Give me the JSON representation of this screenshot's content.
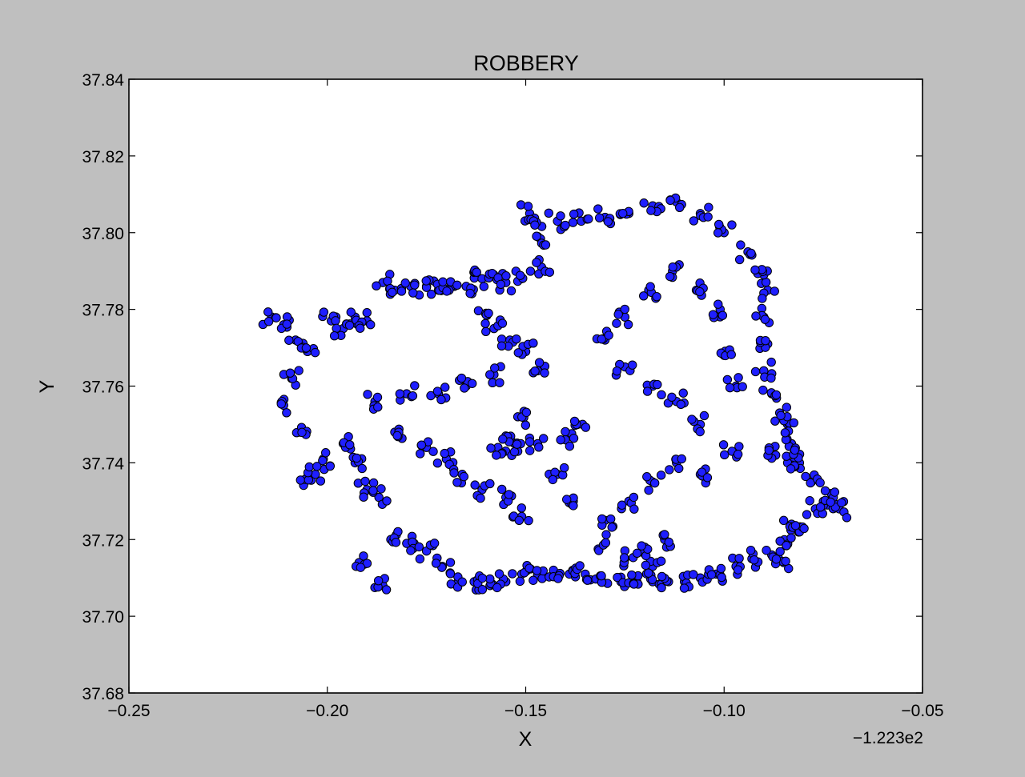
{
  "chart_data": {
    "type": "scatter",
    "title": "ROBBERY",
    "xlabel": "X",
    "ylabel": "Y",
    "x_offset_label": "−1.223e2",
    "xlim": [
      -0.25,
      -0.05
    ],
    "ylim": [
      37.68,
      37.84
    ],
    "xticks": [
      -0.25,
      -0.2,
      -0.15,
      -0.1,
      -0.05
    ],
    "xtick_labels": [
      "−0.25",
      "−0.20",
      "−0.15",
      "−0.10",
      "−0.05"
    ],
    "yticks": [
      37.68,
      37.7,
      37.72,
      37.74,
      37.76,
      37.78,
      37.8,
      37.82,
      37.84
    ],
    "ytick_labels": [
      "37.68",
      "37.70",
      "37.72",
      "37.74",
      "37.76",
      "37.78",
      "37.80",
      "37.82",
      "37.84"
    ],
    "grid": false,
    "marker_color": "#1f1fff",
    "marker_edge_color": "#000000",
    "background_color": "#bfbfbf",
    "series": [
      {
        "points": [
          [
            -0.214,
            37.778
          ],
          [
            -0.211,
            37.776
          ],
          [
            -0.208,
            37.772
          ],
          [
            -0.205,
            37.769
          ],
          [
            -0.209,
            37.762
          ],
          [
            -0.211,
            37.755
          ],
          [
            -0.207,
            37.748
          ],
          [
            -0.206,
            37.735
          ],
          [
            -0.203,
            37.737
          ],
          [
            -0.201,
            37.741
          ],
          [
            -0.199,
            37.777
          ],
          [
            -0.196,
            37.775
          ],
          [
            -0.193,
            37.778
          ],
          [
            -0.19,
            37.777
          ],
          [
            -0.186,
            37.787
          ],
          [
            -0.183,
            37.785
          ],
          [
            -0.179,
            37.786
          ],
          [
            -0.175,
            37.786
          ],
          [
            -0.172,
            37.785
          ],
          [
            -0.168,
            37.786
          ],
          [
            -0.165,
            37.786
          ],
          [
            -0.161,
            37.788
          ],
          [
            -0.158,
            37.789
          ],
          [
            -0.155,
            37.787
          ],
          [
            -0.151,
            37.788
          ],
          [
            -0.149,
            37.805
          ],
          [
            -0.148,
            37.803
          ],
          [
            -0.147,
            37.799
          ],
          [
            -0.146,
            37.791
          ],
          [
            -0.196,
            37.745
          ],
          [
            -0.193,
            37.74
          ],
          [
            -0.19,
            37.733
          ],
          [
            -0.187,
            37.731
          ],
          [
            -0.192,
            37.714
          ],
          [
            -0.186,
            37.708
          ],
          [
            -0.184,
            37.72
          ],
          [
            -0.18,
            37.719
          ],
          [
            -0.175,
            37.717
          ],
          [
            -0.171,
            37.713
          ],
          [
            -0.167,
            37.709
          ],
          [
            -0.163,
            37.709
          ],
          [
            -0.159,
            37.708
          ],
          [
            -0.155,
            37.709
          ],
          [
            -0.151,
            37.711
          ],
          [
            -0.147,
            37.711
          ],
          [
            -0.143,
            37.712
          ],
          [
            -0.139,
            37.711
          ],
          [
            -0.135,
            37.711
          ],
          [
            -0.131,
            37.71
          ],
          [
            -0.126,
            37.709
          ],
          [
            -0.122,
            37.709
          ],
          [
            -0.118,
            37.709
          ],
          [
            -0.114,
            37.709
          ],
          [
            -0.11,
            37.709
          ],
          [
            -0.106,
            37.71
          ],
          [
            -0.102,
            37.711
          ],
          [
            -0.097,
            37.713
          ],
          [
            -0.093,
            37.715
          ],
          [
            -0.088,
            37.716
          ],
          [
            -0.085,
            37.714
          ],
          [
            -0.084,
            37.719
          ],
          [
            -0.083,
            37.724
          ],
          [
            -0.081,
            37.722
          ],
          [
            -0.077,
            37.728
          ],
          [
            -0.074,
            37.729
          ],
          [
            -0.071,
            37.728
          ],
          [
            -0.073,
            37.732
          ],
          [
            -0.078,
            37.735
          ],
          [
            -0.081,
            37.74
          ],
          [
            -0.084,
            37.74
          ],
          [
            -0.087,
            37.742
          ],
          [
            -0.083,
            37.745
          ],
          [
            -0.084,
            37.75
          ],
          [
            -0.086,
            37.753
          ],
          [
            -0.088,
            37.758
          ],
          [
            -0.09,
            37.764
          ],
          [
            -0.089,
            37.771
          ],
          [
            -0.09,
            37.778
          ],
          [
            -0.089,
            37.785
          ],
          [
            -0.09,
            37.789
          ],
          [
            -0.094,
            37.795
          ],
          [
            -0.1,
            37.8
          ],
          [
            -0.106,
            37.805
          ],
          [
            -0.112,
            37.808
          ],
          [
            -0.118,
            37.807
          ],
          [
            -0.124,
            37.805
          ],
          [
            -0.13,
            37.804
          ],
          [
            -0.136,
            37.803
          ],
          [
            -0.142,
            37.803
          ],
          [
            -0.16,
            37.779
          ],
          [
            -0.158,
            37.775
          ],
          [
            -0.154,
            37.772
          ],
          [
            -0.15,
            37.769
          ],
          [
            -0.147,
            37.764
          ],
          [
            -0.158,
            37.763
          ],
          [
            -0.165,
            37.76
          ],
          [
            -0.172,
            37.758
          ],
          [
            -0.18,
            37.758
          ],
          [
            -0.188,
            37.756
          ],
          [
            -0.183,
            37.748
          ],
          [
            -0.175,
            37.744
          ],
          [
            -0.17,
            37.741
          ],
          [
            -0.166,
            37.737
          ],
          [
            -0.161,
            37.733
          ],
          [
            -0.155,
            37.731
          ],
          [
            -0.151,
            37.726
          ],
          [
            -0.155,
            37.747
          ],
          [
            -0.157,
            37.744
          ],
          [
            -0.152,
            37.743
          ],
          [
            -0.147,
            37.745
          ],
          [
            -0.152,
            37.752
          ],
          [
            -0.14,
            37.746
          ],
          [
            -0.137,
            37.75
          ],
          [
            -0.142,
            37.737
          ],
          [
            -0.138,
            37.73
          ],
          [
            -0.13,
            37.719
          ],
          [
            -0.125,
            37.715
          ],
          [
            -0.118,
            37.713
          ],
          [
            -0.115,
            37.72
          ],
          [
            -0.12,
            37.718
          ],
          [
            -0.106,
            37.737
          ],
          [
            -0.098,
            37.743
          ],
          [
            -0.097,
            37.76
          ],
          [
            -0.1,
            37.768
          ],
          [
            -0.101,
            37.78
          ],
          [
            -0.107,
            37.785
          ],
          [
            -0.113,
            37.79
          ],
          [
            -0.119,
            37.785
          ],
          [
            -0.125,
            37.778
          ],
          [
            -0.13,
            37.772
          ],
          [
            -0.125,
            37.765
          ],
          [
            -0.118,
            37.76
          ],
          [
            -0.112,
            37.756
          ],
          [
            -0.106,
            37.75
          ],
          [
            -0.112,
            37.74
          ],
          [
            -0.118,
            37.735
          ],
          [
            -0.124,
            37.73
          ],
          [
            -0.13,
            37.725
          ]
        ]
      }
    ]
  }
}
